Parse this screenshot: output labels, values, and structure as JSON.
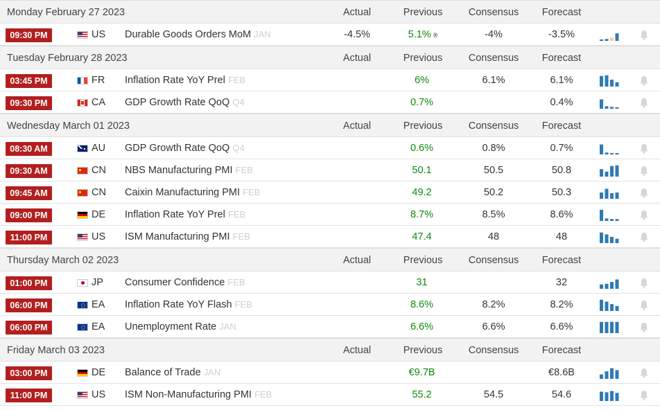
{
  "headers": {
    "actual": "Actual",
    "previous": "Previous",
    "consensus": "Consensus",
    "forecast": "Forecast"
  },
  "colors": {
    "time_badge": "#b31e1e",
    "previous_value": "#0b8a0b",
    "sparkline": "#2f7ab5",
    "bell": "#d6d6d6"
  },
  "days": [
    {
      "date": "Monday February 27 2023",
      "events": [
        {
          "time": "09:30 PM",
          "flag": "us",
          "country": "US",
          "name": "Durable Goods Orders MoM",
          "ref": "JAN",
          "actual": "-4.5%",
          "previous": "5.1%",
          "revised": "®",
          "consensus": "-4%",
          "forecast": "-3.5%",
          "spark": [
            0.1,
            0.15,
            0.25,
            0.6
          ],
          "spark_colors": [
            "#2f7ab5",
            "#2f7ab5",
            "#f2d29a",
            "#2f7ab5"
          ]
        }
      ]
    },
    {
      "date": "Tuesday February 28 2023",
      "events": [
        {
          "time": "03:45 PM",
          "flag": "fr",
          "country": "FR",
          "name": "Inflation Rate YoY Prel",
          "ref": "FEB",
          "actual": "",
          "previous": "6%",
          "consensus": "6.1%",
          "forecast": "6.1%",
          "spark": [
            0.85,
            0.9,
            0.55,
            0.35
          ]
        },
        {
          "time": "09:30 PM",
          "flag": "ca",
          "country": "CA",
          "name": "GDP Growth Rate QoQ",
          "ref": "Q4",
          "actual": "",
          "previous": "0.7%",
          "consensus": "",
          "forecast": "0.4%",
          "spark": [
            0.75,
            0.2,
            0.15,
            0.1
          ]
        }
      ]
    },
    {
      "date": "Wednesday March 01 2023",
      "events": [
        {
          "time": "08:30 AM",
          "flag": "au",
          "country": "AU",
          "name": "GDP Growth Rate QoQ",
          "ref": "Q4",
          "actual": "",
          "previous": "0.6%",
          "consensus": "0.8%",
          "forecast": "0.7%",
          "spark": [
            0.8,
            0.15,
            0.1,
            0.1
          ]
        },
        {
          "time": "09:30 AM",
          "flag": "cn",
          "country": "CN",
          "name": "NBS Manufacturing PMI",
          "ref": "FEB",
          "actual": "",
          "previous": "50.1",
          "consensus": "50.5",
          "forecast": "50.8",
          "spark": [
            0.6,
            0.4,
            0.85,
            0.9
          ]
        },
        {
          "time": "09:45 AM",
          "flag": "cn",
          "country": "CN",
          "name": "Caixin Manufacturing PMI",
          "ref": "FEB",
          "actual": "",
          "previous": "49.2",
          "consensus": "50.2",
          "forecast": "50.3",
          "spark": [
            0.5,
            0.8,
            0.45,
            0.5
          ]
        },
        {
          "time": "09:00 PM",
          "flag": "de",
          "country": "DE",
          "name": "Inflation Rate YoY Prel",
          "ref": "FEB",
          "actual": "",
          "previous": "8.7%",
          "consensus": "8.5%",
          "forecast": "8.6%",
          "spark": [
            0.9,
            0.2,
            0.15,
            0.15
          ]
        },
        {
          "time": "11:00 PM",
          "flag": "us",
          "country": "US",
          "name": "ISM Manufacturing PMI",
          "ref": "FEB",
          "actual": "",
          "previous": "47.4",
          "consensus": "48",
          "forecast": "48",
          "spark": [
            0.85,
            0.7,
            0.5,
            0.35
          ]
        }
      ]
    },
    {
      "date": "Thursday March 02 2023",
      "events": [
        {
          "time": "01:00 PM",
          "flag": "jp",
          "country": "JP",
          "name": "Consumer Confidence",
          "ref": "FEB",
          "actual": "",
          "previous": "31",
          "consensus": "",
          "forecast": "32",
          "spark": [
            0.35,
            0.4,
            0.55,
            0.75
          ]
        },
        {
          "time": "06:00 PM",
          "flag": "ea",
          "country": "EA",
          "name": "Inflation Rate YoY Flash",
          "ref": "FEB",
          "actual": "",
          "previous": "8.6%",
          "consensus": "8.2%",
          "forecast": "8.2%",
          "spark": [
            0.9,
            0.75,
            0.55,
            0.4
          ]
        },
        {
          "time": "06:00 PM",
          "flag": "ea",
          "country": "EA",
          "name": "Unemployment Rate",
          "ref": "JAN",
          "actual": "",
          "previous": "6.6%",
          "consensus": "6.6%",
          "forecast": "6.6%",
          "spark": [
            0.9,
            0.9,
            0.9,
            0.9
          ]
        }
      ]
    },
    {
      "date": "Friday March 03 2023",
      "events": [
        {
          "time": "03:00 PM",
          "flag": "de",
          "country": "DE",
          "name": "Balance of Trade",
          "ref": "JAN",
          "actual": "",
          "previous": "€9.7B",
          "consensus": "",
          "forecast": "€8.6B",
          "spark": [
            0.35,
            0.6,
            0.85,
            0.7
          ]
        },
        {
          "time": "11:00 PM",
          "flag": "us",
          "country": "US",
          "name": "ISM Non-Manufacturing PMI",
          "ref": "FEB",
          "actual": "",
          "previous": "55.2",
          "consensus": "54.5",
          "forecast": "54.6",
          "spark": [
            0.75,
            0.7,
            0.8,
            0.65
          ]
        }
      ]
    }
  ]
}
